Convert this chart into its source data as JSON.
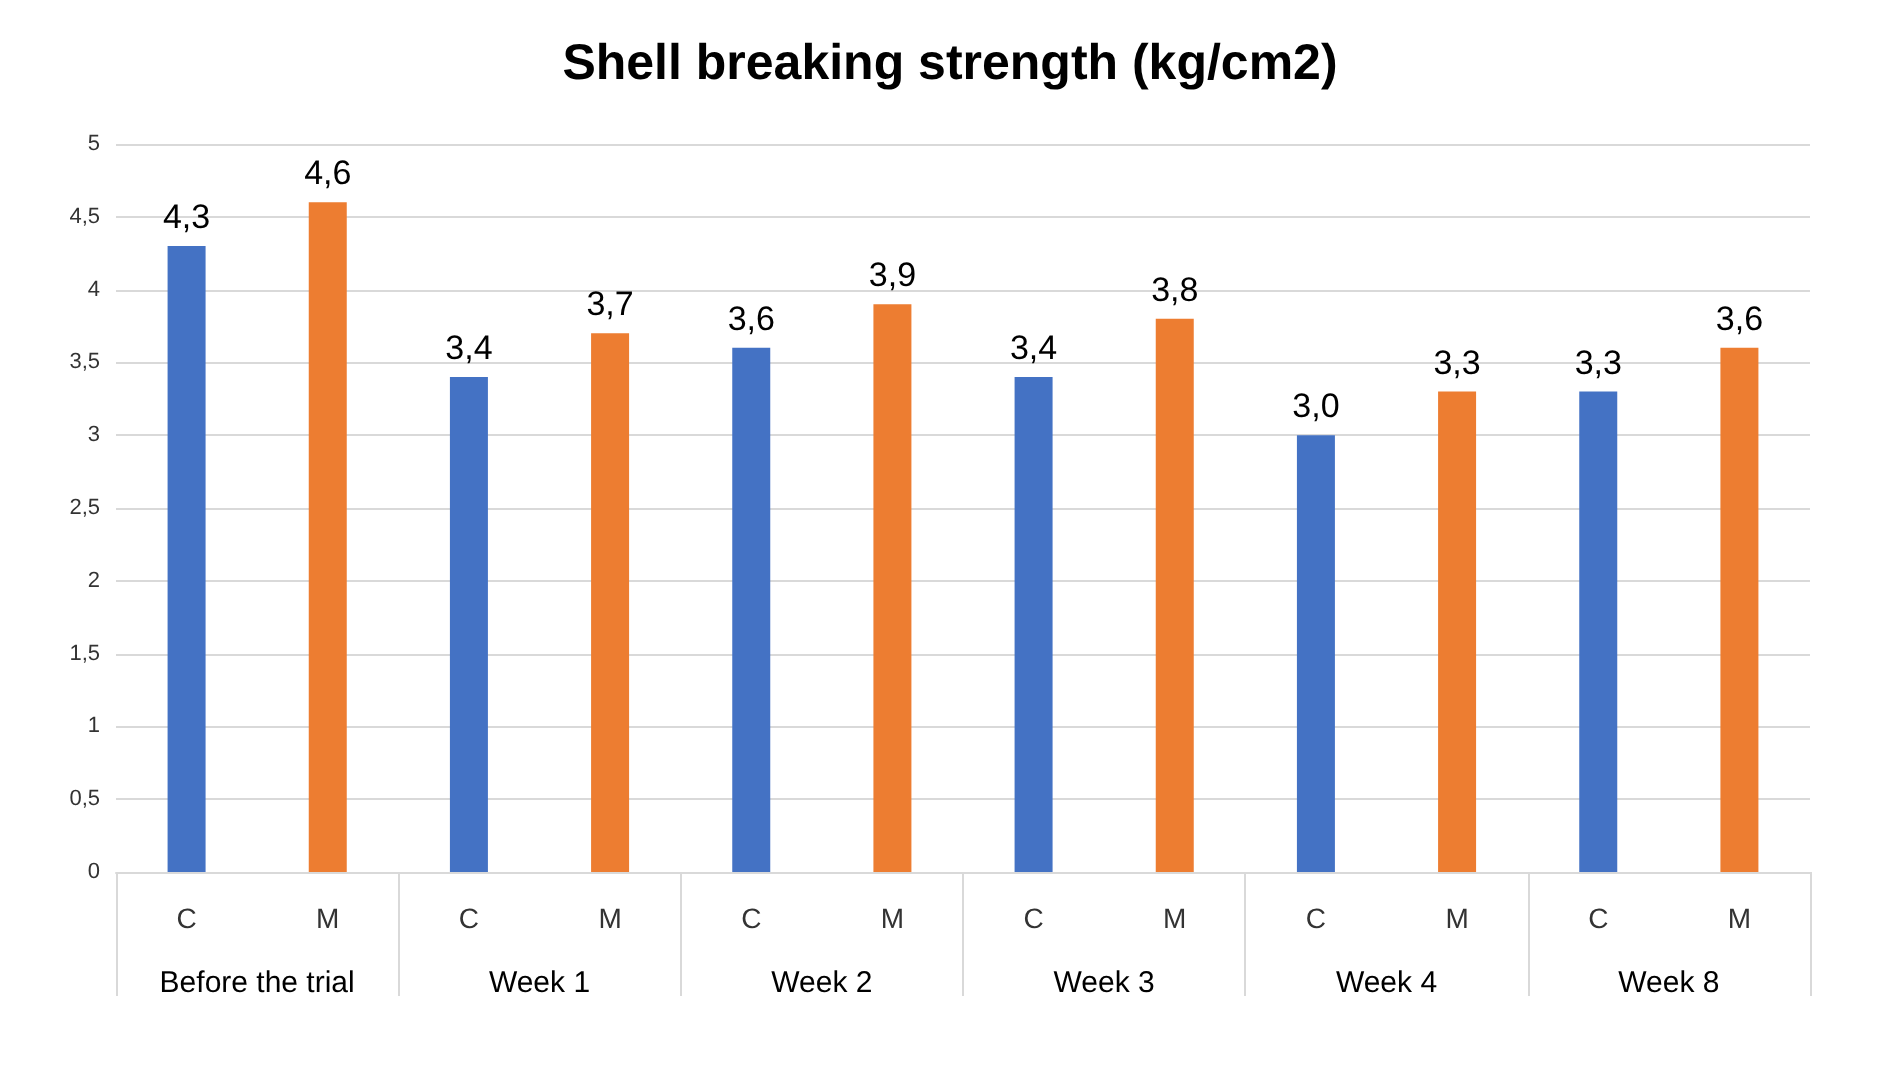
{
  "chart_data": {
    "type": "bar",
    "title": "Shell breaking strength (kg/cm2)",
    "categories": [
      "Before the trial",
      "Week 1",
      "Week 2",
      "Week 3",
      "Week 4",
      "Week 8"
    ],
    "series": [
      {
        "name": "C",
        "color": "#4472c4",
        "values": [
          4.3,
          3.4,
          3.6,
          3.4,
          3.0,
          3.3
        ],
        "value_labels": [
          "4,3",
          "3,4",
          "3,6",
          "3,4",
          "3,0",
          "3,3"
        ]
      },
      {
        "name": "M",
        "color": "#ed7d31",
        "values": [
          4.6,
          3.7,
          3.9,
          3.8,
          3.3,
          3.6
        ],
        "value_labels": [
          "4,6",
          "3,7",
          "3,9",
          "3,8",
          "3,3",
          "3,6"
        ]
      }
    ],
    "ylim": [
      0,
      5
    ],
    "yticks": [
      0,
      {
        "value": 0.5,
        "label": "0,5"
      },
      1,
      {
        "value": 1.5,
        "label": "1,5"
      },
      2,
      {
        "value": 2.5,
        "label": "2,5"
      },
      3,
      {
        "value": 3.5,
        "label": "3,5"
      },
      4,
      {
        "value": 4.5,
        "label": "4,5"
      },
      5
    ],
    "grid": "y",
    "legend": false
  }
}
